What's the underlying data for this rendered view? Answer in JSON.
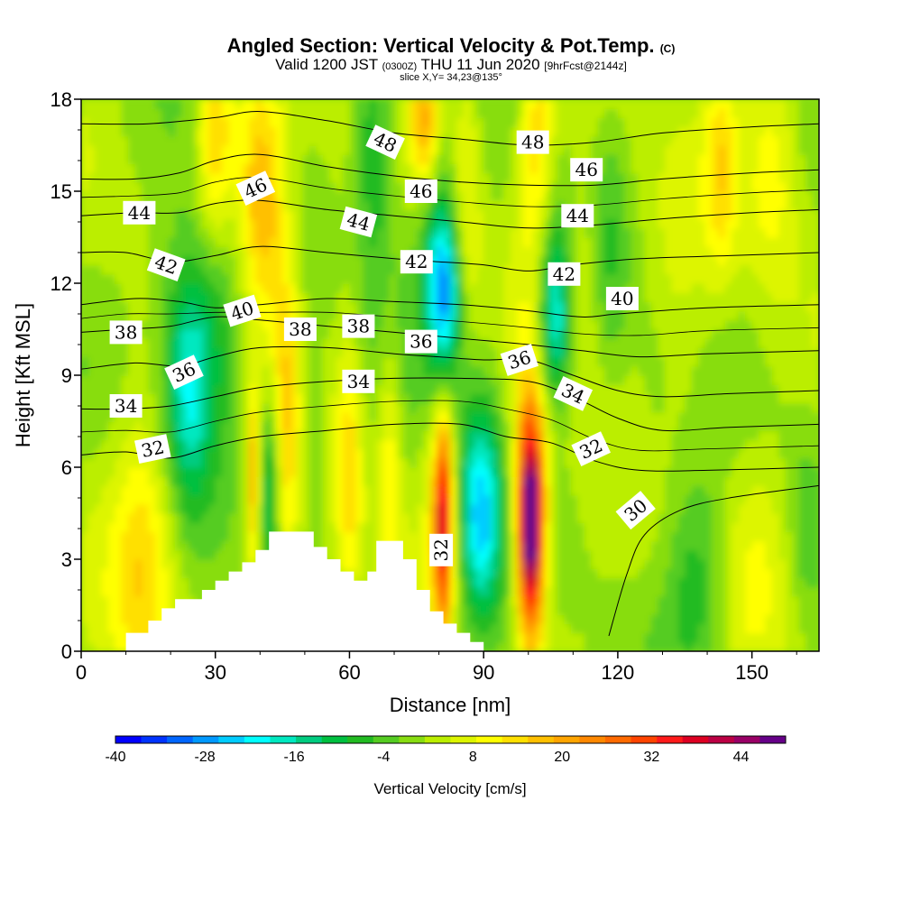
{
  "chart_data": {
    "type": "heatmap",
    "title": "Angled Section: Vertical Velocity & Pot.Temp.",
    "title_mark": "(C)",
    "subtitle_parts": [
      "Valid 1200 JST ",
      "(0300Z)",
      " THU 11 Jun 2020 ",
      "[9hrFcst@2144z]"
    ],
    "slice_text": "slice X,Y= 34,23@135°",
    "xlabel": "Distance [nm]",
    "ylabel": "Height [Kft MSL]",
    "xlim": [
      0,
      165
    ],
    "ylim": [
      0,
      18
    ],
    "x_ticks": [
      0,
      30,
      60,
      90,
      120,
      150
    ],
    "y_ticks": [
      0,
      3,
      6,
      9,
      12,
      15,
      18
    ],
    "colorbar": {
      "label": "Vertical Velocity [cm/s]",
      "range": [
        -40,
        50
      ],
      "tick_values": [
        -40,
        -28,
        -16,
        -4,
        8,
        20,
        32,
        44
      ],
      "tick_labels": [
        "-40",
        "-28",
        "-16",
        "-4",
        "8",
        "20",
        "32",
        "44"
      ],
      "colors": [
        "#0000ff",
        "#0033ff",
        "#0066ff",
        "#0099ff",
        "#00ccff",
        "#00ffff",
        "#00e8c0",
        "#00cc80",
        "#00c040",
        "#22bb22",
        "#55cc22",
        "#88dd11",
        "#bbee00",
        "#ddf500",
        "#ffff00",
        "#ffe000",
        "#ffc000",
        "#ffa500",
        "#ff8800",
        "#ff6a00",
        "#ff4400",
        "#ff1a1a",
        "#dd0022",
        "#bb0044",
        "#990066",
        "#660088"
      ]
    },
    "terrain": [
      [
        0,
        0
      ],
      [
        10,
        0
      ],
      [
        10,
        0.6
      ],
      [
        15,
        0.6
      ],
      [
        15,
        1.0
      ],
      [
        18,
        1.0
      ],
      [
        18,
        1.4
      ],
      [
        21,
        1.4
      ],
      [
        21,
        1.7
      ],
      [
        27,
        1.7
      ],
      [
        27,
        2.0
      ],
      [
        30,
        2.0
      ],
      [
        30,
        2.3
      ],
      [
        33,
        2.3
      ],
      [
        33,
        2.6
      ],
      [
        36,
        2.6
      ],
      [
        36,
        2.9
      ],
      [
        39,
        2.9
      ],
      [
        39,
        3.3
      ],
      [
        42,
        3.3
      ],
      [
        42,
        3.9
      ],
      [
        52,
        3.9
      ],
      [
        52,
        3.4
      ],
      [
        55,
        3.4
      ],
      [
        55,
        3.0
      ],
      [
        58,
        3.0
      ],
      [
        58,
        2.6
      ],
      [
        61,
        2.6
      ],
      [
        61,
        2.3
      ],
      [
        64,
        2.3
      ],
      [
        64,
        2.6
      ],
      [
        66,
        2.6
      ],
      [
        66,
        3.6
      ],
      [
        72,
        3.6
      ],
      [
        72,
        3.0
      ],
      [
        75,
        3.0
      ],
      [
        75,
        2.0
      ],
      [
        78,
        2.0
      ],
      [
        78,
        1.3
      ],
      [
        81,
        1.3
      ],
      [
        81,
        0.9
      ],
      [
        84,
        0.9
      ],
      [
        84,
        0.6
      ],
      [
        87,
        0.6
      ],
      [
        87,
        0.3
      ],
      [
        90,
        0.3
      ],
      [
        90,
        0
      ],
      [
        165,
        0
      ]
    ],
    "velocity_centers": [
      {
        "x": 100.5,
        "y": 4.2,
        "v": 48,
        "sx": 2.0,
        "sy": 2.4
      },
      {
        "x": 100,
        "y": 5.3,
        "v": 14,
        "sx": 3.5,
        "sy": 3.5
      },
      {
        "x": 81,
        "y": 4.2,
        "v": 33,
        "sx": 1.5,
        "sy": 2.4
      },
      {
        "x": 80,
        "y": 6.0,
        "v": 8,
        "sx": 3.0,
        "sy": 3.0
      },
      {
        "x": 89,
        "y": 4.4,
        "v": -20,
        "sx": 3.0,
        "sy": 2.2
      },
      {
        "x": 92,
        "y": 4.5,
        "v": -8,
        "sx": 6.0,
        "sy": 4.0
      },
      {
        "x": 42,
        "y": 5.2,
        "v": -15,
        "sx": 1.6,
        "sy": 2.2
      },
      {
        "x": 38.5,
        "y": 5.5,
        "v": 17,
        "sx": 1.1,
        "sy": 2.2
      },
      {
        "x": 46,
        "y": 6.8,
        "v": 8,
        "sx": 1.6,
        "sy": 3.5
      },
      {
        "x": 52,
        "y": 6.5,
        "v": -6,
        "sx": 1.6,
        "sy": 3.0
      },
      {
        "x": 60,
        "y": 5.8,
        "v": 12,
        "sx": 2.0,
        "sy": 3.0
      },
      {
        "x": 69,
        "y": 6.5,
        "v": 10,
        "sx": 2.0,
        "sy": 3.5
      },
      {
        "x": 14,
        "y": 2.8,
        "v": 12,
        "sx": 5.0,
        "sy": 3.5
      },
      {
        "x": 24,
        "y": 8.5,
        "v": -16,
        "sx": 3.5,
        "sy": 2.5
      },
      {
        "x": 24,
        "y": 10.8,
        "v": -9,
        "sx": 6.0,
        "sy": 3.0
      },
      {
        "x": 31,
        "y": 10.5,
        "v": -7,
        "sx": 4.0,
        "sy": 3.0
      },
      {
        "x": 40,
        "y": 14.8,
        "v": 18,
        "sx": 3.5,
        "sy": 2.5
      },
      {
        "x": 30,
        "y": 16.5,
        "v": 15,
        "sx": 3.0,
        "sy": 2.5
      },
      {
        "x": 45,
        "y": 11.5,
        "v": 8,
        "sx": 3.5,
        "sy": 3.0
      },
      {
        "x": 65,
        "y": 16.5,
        "v": -10,
        "sx": 3.0,
        "sy": 2.5
      },
      {
        "x": 68,
        "y": 13,
        "v": -6,
        "sx": 4.0,
        "sy": 3.0
      },
      {
        "x": 81,
        "y": 11.7,
        "v": -24,
        "sx": 2.5,
        "sy": 1.8
      },
      {
        "x": 80,
        "y": 13,
        "v": -10,
        "sx": 4.0,
        "sy": 3.5
      },
      {
        "x": 77,
        "y": 17.3,
        "v": 20,
        "sx": 2.5,
        "sy": 1.5
      },
      {
        "x": 86,
        "y": 15.5,
        "v": 10,
        "sx": 2.5,
        "sy": 3.0
      },
      {
        "x": 106,
        "y": 10.8,
        "v": -18,
        "sx": 2.5,
        "sy": 1.8
      },
      {
        "x": 106,
        "y": 12.5,
        "v": -8,
        "sx": 3.5,
        "sy": 3.0
      },
      {
        "x": 102,
        "y": 16.5,
        "v": 14,
        "sx": 3.0,
        "sy": 3.0
      },
      {
        "x": 112,
        "y": 12,
        "v": 6,
        "sx": 3.5,
        "sy": 3.0
      },
      {
        "x": 118,
        "y": 13,
        "v": -6,
        "sx": 3.0,
        "sy": 3.5
      },
      {
        "x": 130,
        "y": 12,
        "v": 6,
        "sx": 6.0,
        "sy": 3.0
      },
      {
        "x": 138,
        "y": 2.3,
        "v": -10,
        "sx": 5.0,
        "sy": 2.5
      },
      {
        "x": 150,
        "y": 3.5,
        "v": 5,
        "sx": 6.0,
        "sy": 3.0
      },
      {
        "x": 162,
        "y": 4.0,
        "v": -6,
        "sx": 3.0,
        "sy": 2.5
      },
      {
        "x": 155,
        "y": 16.0,
        "v": 8,
        "sx": 4.0,
        "sy": 3.0
      },
      {
        "x": 143,
        "y": 16.0,
        "v": 10,
        "sx": 2.5,
        "sy": 2.5
      },
      {
        "x": 128,
        "y": 9.0,
        "v": -5,
        "sx": 4.0,
        "sy": 3.0
      }
    ],
    "theta_contours": [
      {
        "label": "30",
        "points": [
          [
            118,
            0.5
          ],
          [
            122,
            2.5
          ],
          [
            126,
            3.8
          ],
          [
            134,
            4.6
          ],
          [
            145,
            5.0
          ],
          [
            165,
            5.4
          ]
        ]
      },
      {
        "label": "32",
        "points": [
          [
            0,
            6.4
          ],
          [
            10,
            6.5
          ],
          [
            20,
            6.3
          ],
          [
            30,
            6.7
          ],
          [
            40,
            7.0
          ],
          [
            55,
            7.2
          ],
          [
            70,
            7.4
          ],
          [
            85,
            7.4
          ],
          [
            95,
            7.0
          ],
          [
            105,
            6.8
          ],
          [
            115,
            6.2
          ],
          [
            125,
            5.9
          ],
          [
            140,
            5.9
          ],
          [
            165,
            6.0
          ]
        ]
      },
      {
        "label": "34",
        "points": [
          [
            0,
            7.9
          ],
          [
            10,
            7.9
          ],
          [
            20,
            8.0
          ],
          [
            30,
            8.3
          ],
          [
            40,
            8.6
          ],
          [
            55,
            8.8
          ],
          [
            70,
            8.9
          ],
          [
            85,
            8.9
          ],
          [
            100,
            8.8
          ],
          [
            110,
            8.3
          ],
          [
            120,
            7.6
          ],
          [
            130,
            7.2
          ],
          [
            145,
            7.3
          ],
          [
            165,
            7.4
          ]
        ]
      },
      {
        "label": "36",
        "points": [
          [
            0,
            9.2
          ],
          [
            12,
            9.4
          ],
          [
            22,
            9.3
          ],
          [
            30,
            9.6
          ],
          [
            40,
            9.9
          ],
          [
            55,
            9.9
          ],
          [
            70,
            9.7
          ],
          [
            80,
            9.6
          ],
          [
            90,
            9.5
          ],
          [
            100,
            9.5
          ],
          [
            110,
            9.0
          ],
          [
            120,
            8.5
          ],
          [
            130,
            8.3
          ],
          [
            145,
            8.4
          ],
          [
            165,
            8.5
          ]
        ]
      },
      {
        "label": "38",
        "points": [
          [
            0,
            10.4
          ],
          [
            10,
            10.5
          ],
          [
            20,
            10.6
          ],
          [
            30,
            10.9
          ],
          [
            40,
            10.8
          ],
          [
            55,
            10.6
          ],
          [
            70,
            10.4
          ],
          [
            85,
            10.2
          ],
          [
            100,
            10.0
          ],
          [
            112,
            9.8
          ],
          [
            125,
            9.6
          ],
          [
            140,
            9.7
          ],
          [
            165,
            9.8
          ]
        ]
      },
      {
        "label": "40",
        "points": [
          [
            0,
            11.3
          ],
          [
            12,
            11.5
          ],
          [
            22,
            11.4
          ],
          [
            30,
            11.2
          ],
          [
            40,
            11.3
          ],
          [
            55,
            11.5
          ],
          [
            70,
            11.4
          ],
          [
            85,
            11.3
          ],
          [
            100,
            11.1
          ],
          [
            112,
            10.9
          ],
          [
            120,
            11.0
          ],
          [
            140,
            11.2
          ],
          [
            165,
            11.3
          ]
        ]
      },
      {
        "label": "42",
        "points": [
          [
            0,
            13.0
          ],
          [
            10,
            13.0
          ],
          [
            20,
            12.7
          ],
          [
            30,
            12.9
          ],
          [
            40,
            13.2
          ],
          [
            55,
            13.0
          ],
          [
            70,
            12.8
          ],
          [
            80,
            12.7
          ],
          [
            90,
            12.6
          ],
          [
            100,
            12.4
          ],
          [
            110,
            12.6
          ],
          [
            125,
            12.8
          ],
          [
            145,
            12.9
          ],
          [
            165,
            13.0
          ]
        ]
      },
      {
        "label": "44",
        "points": [
          [
            0,
            14.2
          ],
          [
            12,
            14.3
          ],
          [
            22,
            14.3
          ],
          [
            30,
            14.6
          ],
          [
            40,
            14.7
          ],
          [
            55,
            14.4
          ],
          [
            70,
            14.2
          ],
          [
            85,
            14.0
          ],
          [
            100,
            13.8
          ],
          [
            115,
            13.9
          ],
          [
            130,
            14.1
          ],
          [
            150,
            14.3
          ],
          [
            165,
            14.4
          ]
        ]
      },
      {
        "label": "46",
        "points": [
          [
            0,
            15.4
          ],
          [
            12,
            15.4
          ],
          [
            22,
            15.6
          ],
          [
            30,
            16.0
          ],
          [
            40,
            16.2
          ],
          [
            55,
            15.8
          ],
          [
            70,
            15.5
          ],
          [
            85,
            15.3
          ],
          [
            100,
            15.2
          ],
          [
            115,
            15.2
          ],
          [
            130,
            15.4
          ],
          [
            150,
            15.6
          ],
          [
            165,
            15.7
          ]
        ]
      },
      {
        "label": "48",
        "points": [
          [
            0,
            17.2
          ],
          [
            15,
            17.2
          ],
          [
            30,
            17.4
          ],
          [
            40,
            17.6
          ],
          [
            55,
            17.3
          ],
          [
            70,
            16.9
          ],
          [
            85,
            16.7
          ],
          [
            100,
            16.5
          ],
          [
            115,
            16.6
          ],
          [
            130,
            16.9
          ],
          [
            150,
            17.1
          ],
          [
            165,
            17.2
          ]
        ]
      }
    ],
    "contour_labels": [
      {
        "text": "44",
        "x": 13,
        "y": 14.3,
        "rot": 0
      },
      {
        "text": "46",
        "x": 39,
        "y": 15.1,
        "rot": -25
      },
      {
        "text": "48",
        "x": 68,
        "y": 16.6,
        "rot": 25
      },
      {
        "text": "48",
        "x": 101,
        "y": 16.6,
        "rot": 0
      },
      {
        "text": "46",
        "x": 76,
        "y": 15.0,
        "rot": 0
      },
      {
        "text": "46",
        "x": 113,
        "y": 15.7,
        "rot": 0
      },
      {
        "text": "44",
        "x": 62,
        "y": 14.0,
        "rot": 15
      },
      {
        "text": "44",
        "x": 111,
        "y": 14.2,
        "rot": 0
      },
      {
        "text": "42",
        "x": 19,
        "y": 12.6,
        "rot": 20
      },
      {
        "text": "42",
        "x": 75,
        "y": 12.7,
        "rot": 0
      },
      {
        "text": "42",
        "x": 108,
        "y": 12.3,
        "rot": 0
      },
      {
        "text": "40",
        "x": 36,
        "y": 11.1,
        "rot": -18
      },
      {
        "text": "40",
        "x": 121,
        "y": 11.5,
        "rot": 0
      },
      {
        "text": "38",
        "x": 10,
        "y": 10.4,
        "rot": 0
      },
      {
        "text": "38",
        "x": 49,
        "y": 10.5,
        "rot": 0
      },
      {
        "text": "38",
        "x": 62,
        "y": 10.6,
        "rot": 0
      },
      {
        "text": "36",
        "x": 23,
        "y": 9.1,
        "rot": -25
      },
      {
        "text": "36",
        "x": 76,
        "y": 10.1,
        "rot": 0
      },
      {
        "text": "36",
        "x": 98,
        "y": 9.5,
        "rot": -18
      },
      {
        "text": "34",
        "x": 10,
        "y": 8.0,
        "rot": 0
      },
      {
        "text": "34",
        "x": 62,
        "y": 8.8,
        "rot": 0
      },
      {
        "text": "34",
        "x": 110,
        "y": 8.4,
        "rot": 25
      },
      {
        "text": "32",
        "x": 16,
        "y": 6.6,
        "rot": -12
      },
      {
        "text": "32",
        "x": 114,
        "y": 6.6,
        "rot": -25
      },
      {
        "text": "32",
        "x": 80.5,
        "y": 3.3,
        "rot": -90
      },
      {
        "text": "30",
        "x": 124,
        "y": 4.6,
        "rot": -40
      }
    ]
  }
}
